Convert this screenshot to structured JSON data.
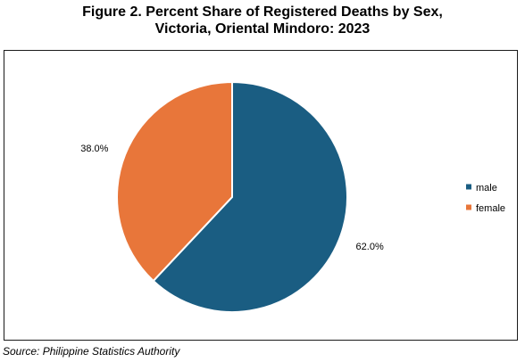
{
  "title_line1": "Figure 2. Percent Share of Registered Deaths by Sex,",
  "title_line2": "Victoria, Oriental Mindoro: 2023",
  "source": "Source: Philippine Statistics Authority",
  "chart_data": {
    "type": "pie",
    "categories": [
      "male",
      "female"
    ],
    "values": [
      62.0,
      38.0
    ],
    "labels": [
      "62.0%",
      "38.0%"
    ],
    "colors": [
      "#1a5d82",
      "#e8763a"
    ],
    "legend_position": "right"
  }
}
